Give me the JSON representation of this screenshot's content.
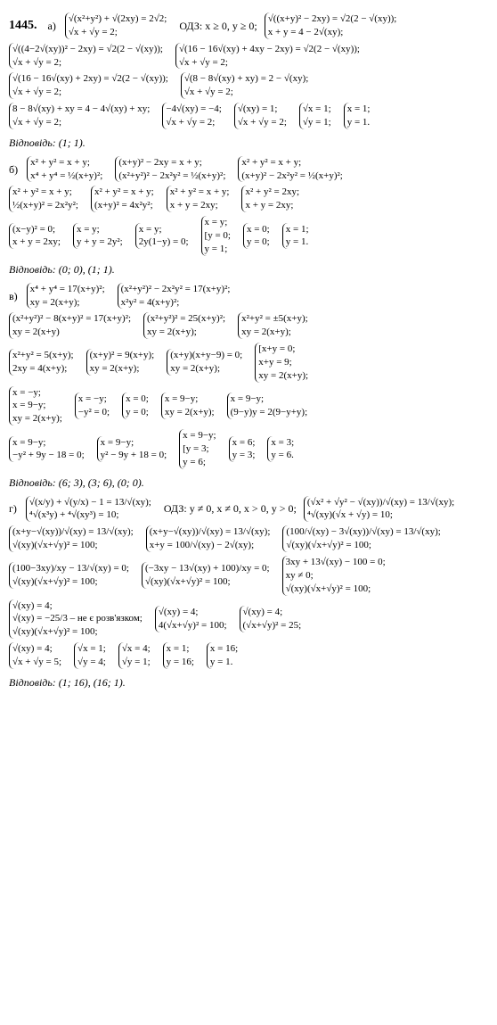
{
  "problem_number": "1445.",
  "parts": {
    "a": {
      "label": "а)",
      "lines": [
        {
          "systems": [
            {
              "rows": [
                "√(x²+y²) + √(2xy) = 2√2;",
                "√x + √y = 2;"
              ]
            },
            {
              "text": "ОДЗ: x ≥ 0, y ≥ 0;",
              "class": "odz"
            },
            {
              "rows": [
                "√((x+y)² − 2xy) = √2(2 − √(xy));",
                "x + y = 4 − 2√(xy);"
              ]
            }
          ]
        },
        {
          "systems": [
            {
              "rows": [
                "√((4−2√(xy))² − 2xy) = √2(2 − √(xy));",
                "√x + √y = 2;"
              ]
            },
            {
              "rows": [
                "√(16 − 16√(xy) + 4xy − 2xy) = √2(2 − √(xy));",
                "√x + √y = 2;"
              ]
            }
          ]
        },
        {
          "systems": [
            {
              "rows": [
                "√(16 − 16√(xy) + 2xy) = √2(2 − √(xy));",
                "√x + √y = 2;"
              ]
            },
            {
              "rows": [
                "√(8 − 8√(xy) + xy) = 2 − √(xy);",
                "√x + √y = 2;"
              ]
            }
          ]
        },
        {
          "systems": [
            {
              "rows": [
                "8 − 8√(xy) + xy = 4 − 4√(xy) + xy;",
                "√x + √y = 2;"
              ]
            },
            {
              "rows": [
                "−4√(xy) = −4;",
                "√x + √y = 2;"
              ]
            },
            {
              "rows": [
                "√(xy) = 1;",
                "√x + √y = 2;"
              ]
            },
            {
              "rows": [
                "√x = 1;",
                "√y = 1;"
              ]
            },
            {
              "rows": [
                "x = 1;",
                "y = 1."
              ]
            }
          ]
        }
      ],
      "answer": "Відповідь: (1; 1)."
    },
    "b": {
      "label": "б)",
      "lines": [
        {
          "systems": [
            {
              "rows": [
                "x² + y² = x + y;",
                "x⁴ + y⁴ = ½(x+y)²;"
              ]
            },
            {
              "rows": [
                "(x+y)² − 2xy = x + y;",
                "(x²+y²)² − 2x²y² = ½(x+y)²;"
              ]
            },
            {
              "rows": [
                "x² + y² = x + y;",
                "(x+y)² − 2x²y² = ½(x+y)²;"
              ]
            }
          ]
        },
        {
          "systems": [
            {
              "rows": [
                "x² + y² = x + y;",
                "½(x+y)² = 2x²y²;"
              ]
            },
            {
              "rows": [
                "x² + y² = x + y;",
                "(x+y)² = 4x²y²;"
              ]
            },
            {
              "rows": [
                "x² + y² = x + y;",
                "x + y = 2xy;"
              ]
            },
            {
              "rows": [
                "x² + y² = 2xy;",
                "x + y = 2xy;"
              ]
            }
          ]
        },
        {
          "systems": [
            {
              "rows": [
                "(x−y)² = 0;",
                "x + y = 2xy;"
              ]
            },
            {
              "rows": [
                "x = y;",
                "y + y = 2y²;"
              ]
            },
            {
              "rows": [
                "x = y;",
                "2y(1−y) = 0;"
              ]
            },
            {
              "rows": [
                "x = y;",
                "[y = 0;",
                " y = 1;"
              ]
            },
            {
              "rows": [
                "x = 0;",
                "y = 0;"
              ]
            },
            {
              "rows": [
                "x = 1;",
                "y = 1."
              ]
            }
          ]
        }
      ],
      "answer": "Відповідь: (0; 0), (1; 1)."
    },
    "v": {
      "label": "в)",
      "lines": [
        {
          "systems": [
            {
              "rows": [
                "x⁴ + y⁴ = 17(x+y)²;",
                "xy = 2(x+y);"
              ]
            },
            {
              "rows": [
                "(x²+y²)² − 2x²y² = 17(x+y)²;",
                "x²y² = 4(x+y)²;"
              ]
            }
          ]
        },
        {
          "systems": [
            {
              "rows": [
                "(x²+y²)² − 8(x+y)² = 17(x+y)²;",
                "xy = 2(x+y)"
              ]
            },
            {
              "rows": [
                "(x²+y²)² = 25(x+y)²;",
                "xy = 2(x+y);"
              ]
            },
            {
              "rows": [
                "x²+y² = ±5(x+y);",
                "xy = 2(x+y);"
              ]
            }
          ]
        },
        {
          "systems": [
            {
              "rows": [
                "x²+y² = 5(x+y);",
                "2xy = 4(x+y);"
              ]
            },
            {
              "rows": [
                "(x+y)² = 9(x+y);",
                "xy = 2(x+y);"
              ]
            },
            {
              "rows": [
                "(x+y)(x+y−9) = 0;",
                "xy = 2(x+y);"
              ]
            },
            {
              "rows": [
                "[x+y = 0;",
                " x+y = 9;",
                "xy = 2(x+y);"
              ]
            }
          ]
        },
        {
          "systems": [
            {
              "rows": [
                "x = −y;",
                "x = 9−y;",
                "xy = 2(x+y);"
              ]
            },
            {
              "rows": [
                "x = −y;",
                "−y² = 0;"
              ]
            },
            {
              "rows": [
                "x = 0;",
                "y = 0;"
              ]
            },
            {
              "rows": [
                "x = 9−y;",
                "xy = 2(x+y);"
              ]
            },
            {
              "rows": [
                "x = 9−y;",
                "(9−y)y = 2(9−y+y);"
              ]
            }
          ]
        },
        {
          "systems": [
            {
              "rows": [
                "x = 9−y;",
                "−y² + 9y − 18 = 0;"
              ]
            },
            {
              "rows": [
                "x = 9−y;",
                "y² − 9y + 18 = 0;"
              ]
            },
            {
              "rows": [
                "x = 9−y;",
                "[y = 3;",
                " y = 6;"
              ]
            },
            {
              "rows": [
                "x = 6;",
                "y = 3;"
              ]
            },
            {
              "rows": [
                "x = 3;",
                "y = 6."
              ]
            }
          ]
        }
      ],
      "answer": "Відповідь: (6; 3), (3; 6), (0; 0)."
    },
    "g": {
      "label": "г)",
      "lines": [
        {
          "systems": [
            {
              "rows": [
                "√(x/y) + √(y/x) − 1 = 13/√(xy);",
                "⁴√(x³y) + ⁴√(xy³) = 10;"
              ]
            },
            {
              "text": "ОДЗ: y ≠ 0, x ≠ 0, x > 0, y > 0;",
              "class": "odz"
            },
            {
              "rows": [
                "(√x² + √y² − √(xy))/√(xy) = 13/√(xy);",
                "⁴√(xy)(√x + √y) = 10;"
              ]
            }
          ]
        },
        {
          "systems": [
            {
              "rows": [
                "(x+y−√(xy))/√(xy) = 13/√(xy);",
                "√(xy)(√x+√y)² = 100;"
              ]
            },
            {
              "rows": [
                "(x+y−√(xy))/√(xy) = 13/√(xy);",
                "x+y = 100/√(xy) − 2√(xy);"
              ]
            },
            {
              "rows": [
                "(100/√(xy) − 3√(xy))/√(xy) = 13/√(xy);",
                "√(xy)(√x+√y)² = 100;"
              ]
            }
          ]
        },
        {
          "systems": [
            {
              "rows": [
                "(100−3xy)/xy − 13/√(xy) = 0;",
                "√(xy)(√x+√y)² = 100;"
              ]
            },
            {
              "rows": [
                "(−3xy − 13√(xy) + 100)/xy = 0;",
                "√(xy)(√x+√y)² = 100;"
              ]
            },
            {
              "rows": [
                "3xy + 13√(xy) − 100 = 0;",
                "xy ≠ 0;",
                "√(xy)(√x+√y)² = 100;"
              ]
            }
          ]
        },
        {
          "systems": [
            {
              "rows": [
                "√(xy) = 4;",
                "√(xy) = −25/3 – не є розв'язком;",
                "√(xy)(√x+√y)² = 100;"
              ]
            },
            {
              "rows": [
                "√(xy) = 4;",
                "4(√x+√y)² = 100;"
              ]
            },
            {
              "rows": [
                "√(xy) = 4;",
                "(√x+√y)² = 25;"
              ]
            }
          ]
        },
        {
          "systems": [
            {
              "rows": [
                "√(xy) = 4;",
                "√x + √y = 5;"
              ]
            },
            {
              "rows": [
                "√x = 1;",
                "√y = 4;"
              ]
            },
            {
              "rows": [
                "√x = 4;",
                "√y = 1;"
              ]
            },
            {
              "rows": [
                "x = 1;",
                "y = 16;"
              ]
            },
            {
              "rows": [
                "x = 16;",
                "y = 1."
              ]
            }
          ]
        }
      ],
      "answer": "Відповідь: (1; 16), (16; 1)."
    }
  }
}
